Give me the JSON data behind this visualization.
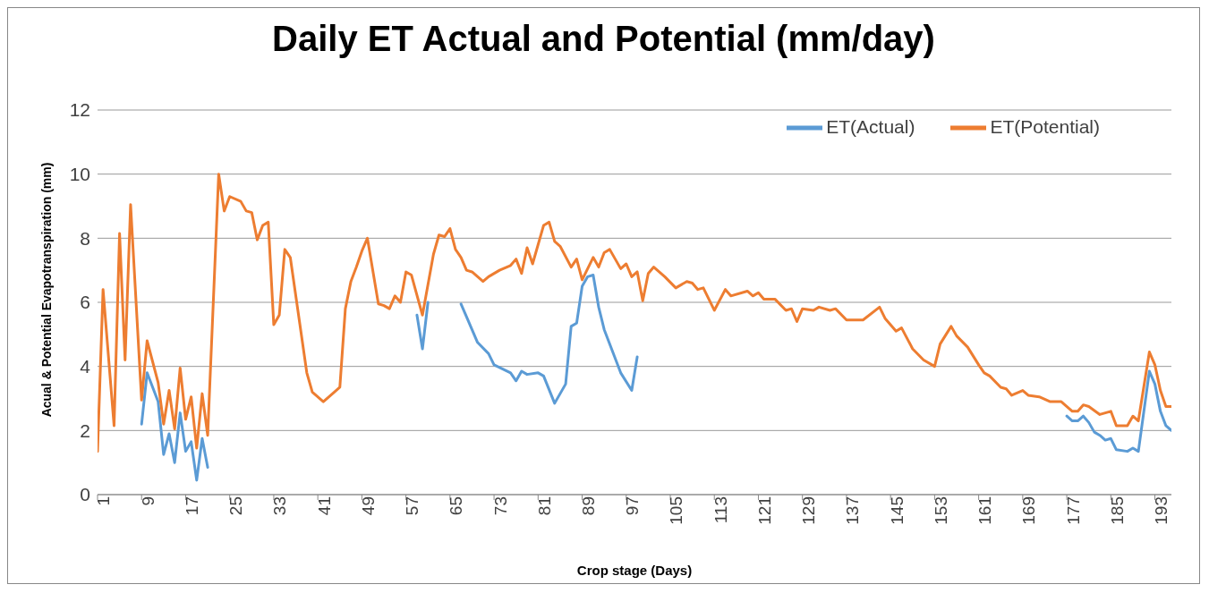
{
  "chart_data": {
    "type": "line",
    "title": "Daily ET Actual and Potential (mm/day)",
    "xlabel": "Crop stage (Days)",
    "ylabel": "Acual & Potential Evapotranspiration (mm)",
    "xlim": [
      1,
      196
    ],
    "xticks": [
      1,
      9,
      17,
      25,
      33,
      41,
      49,
      57,
      65,
      73,
      81,
      89,
      97,
      105,
      113,
      121,
      129,
      137,
      145,
      153,
      161,
      169,
      177,
      185,
      193
    ],
    "ylim": [
      0,
      12
    ],
    "yticks": [
      0,
      2,
      4,
      6,
      8,
      10,
      12
    ],
    "grid": "y",
    "legend": "top right",
    "series": [
      {
        "name": "ET(Actual)",
        "color": "#5b9bd5",
        "x": [
          9,
          10,
          12,
          13,
          14,
          15,
          16,
          17,
          18,
          19,
          20,
          21,
          22,
          59,
          60,
          61,
          62,
          67,
          68,
          70,
          72,
          73,
          76,
          77,
          78,
          79,
          81,
          82,
          84,
          86,
          87,
          88,
          89,
          90,
          91,
          92,
          93,
          96,
          98,
          99,
          100,
          177,
          178,
          179,
          180,
          181,
          182,
          183,
          184,
          185,
          186,
          188,
          189,
          190,
          192,
          193,
          194,
          195,
          196
        ],
        "values": [
          2.2,
          3.8,
          2.9,
          1.25,
          1.9,
          1.0,
          2.55,
          1.35,
          1.65,
          0.45,
          1.75,
          0.85,
          null,
          5.6,
          4.55,
          6.0,
          null,
          5.95,
          5.55,
          4.75,
          4.4,
          4.05,
          3.8,
          3.55,
          3.85,
          3.75,
          3.8,
          3.7,
          2.85,
          3.45,
          5.25,
          5.35,
          6.5,
          6.8,
          6.85,
          5.85,
          5.15,
          3.8,
          3.25,
          4.3,
          null,
          2.45,
          2.3,
          2.3,
          2.45,
          2.25,
          1.95,
          1.85,
          1.7,
          1.75,
          1.4,
          1.35,
          1.45,
          1.35,
          3.85,
          3.45,
          2.6,
          2.15,
          2.0
        ]
      },
      {
        "name": "ET(Potential)",
        "color": "#ed7d31",
        "x": [
          1,
          2,
          4,
          5,
          6,
          7,
          9,
          10,
          12,
          13,
          14,
          15,
          16,
          17,
          18,
          19,
          20,
          21,
          23,
          24,
          25,
          27,
          28,
          29,
          30,
          31,
          32,
          33,
          34,
          35,
          36,
          39,
          40,
          42,
          44,
          45,
          46,
          47,
          48,
          49,
          50,
          52,
          53,
          54,
          55,
          56,
          57,
          58,
          60,
          62,
          63,
          64,
          65,
          66,
          67,
          68,
          69,
          71,
          72,
          74,
          76,
          77,
          78,
          79,
          80,
          82,
          83,
          84,
          85,
          87,
          88,
          89,
          91,
          92,
          93,
          94,
          96,
          97,
          98,
          99,
          100,
          101,
          102,
          104,
          106,
          108,
          109,
          110,
          111,
          113,
          115,
          116,
          119,
          120,
          121,
          122,
          124,
          126,
          127,
          128,
          129,
          131,
          132,
          134,
          135,
          137,
          140,
          143,
          144,
          146,
          147,
          149,
          151,
          153,
          154,
          156,
          157,
          159,
          161,
          162,
          163,
          165,
          166,
          167,
          169,
          170,
          172,
          174,
          176,
          178,
          179,
          180,
          181,
          183,
          185,
          186,
          188,
          189,
          190,
          192,
          193,
          194,
          195,
          196
        ],
        "values": [
          1.35,
          6.4,
          2.15,
          8.15,
          4.2,
          9.05,
          2.95,
          4.8,
          3.5,
          2.2,
          3.25,
          2.05,
          3.95,
          2.35,
          3.05,
          1.45,
          3.15,
          1.85,
          10.0,
          8.85,
          9.3,
          9.15,
          8.85,
          8.8,
          7.95,
          8.4,
          8.5,
          5.3,
          5.6,
          7.65,
          7.4,
          3.8,
          3.2,
          2.9,
          3.2,
          3.35,
          5.8,
          6.65,
          7.1,
          7.6,
          8.0,
          5.95,
          5.9,
          5.8,
          6.2,
          6.0,
          6.95,
          6.85,
          5.6,
          7.5,
          8.1,
          8.05,
          8.3,
          7.65,
          7.4,
          7.0,
          6.95,
          6.65,
          6.8,
          7.0,
          7.15,
          7.35,
          6.9,
          7.7,
          7.2,
          8.4,
          8.5,
          7.9,
          7.75,
          7.1,
          7.35,
          6.7,
          7.4,
          7.1,
          7.55,
          7.65,
          7.05,
          7.2,
          6.8,
          6.95,
          6.05,
          6.9,
          7.1,
          6.8,
          6.45,
          6.65,
          6.6,
          6.4,
          6.45,
          5.75,
          6.4,
          6.2,
          6.35,
          6.2,
          6.3,
          6.1,
          6.1,
          5.75,
          5.8,
          5.4,
          5.8,
          5.75,
          5.85,
          5.75,
          5.8,
          5.45,
          5.45,
          5.85,
          5.5,
          5.1,
          5.2,
          4.55,
          4.2,
          4.0,
          4.7,
          5.25,
          4.95,
          4.6,
          4.05,
          3.8,
          3.7,
          3.35,
          3.3,
          3.1,
          3.25,
          3.1,
          3.05,
          2.9,
          2.9,
          2.6,
          2.6,
          2.8,
          2.75,
          2.5,
          2.6,
          2.15,
          2.15,
          2.45,
          2.3,
          4.45,
          4.05,
          3.25,
          2.75,
          2.75
        ]
      }
    ]
  }
}
